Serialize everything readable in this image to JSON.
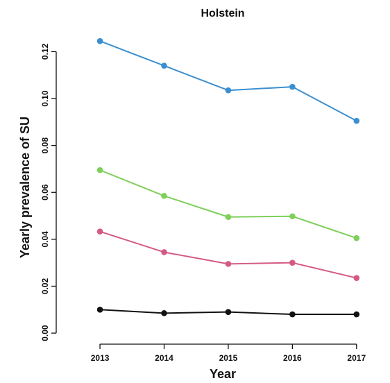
{
  "chart_data": {
    "type": "line",
    "title": "Holstein",
    "xlabel": "Year",
    "ylabel": "Yearly prevalence of SU",
    "x": [
      2013,
      2014,
      2015,
      2016,
      2017
    ],
    "x_tick_labels": [
      "2013",
      "2014",
      "2015",
      "2016",
      "2017"
    ],
    "xlim": [
      2012.35,
      2017.5
    ],
    "ylim": [
      -0.005,
      0.129
    ],
    "y_ticks": [
      0.0,
      0.02,
      0.04,
      0.06,
      0.08,
      0.1,
      0.12
    ],
    "y_tick_labels": [
      "0.00",
      "0.02",
      "0.04",
      "0.06",
      "0.08",
      "0.10",
      "0.12"
    ],
    "grid": false,
    "legend": "none",
    "series": [
      {
        "color": "#3b8fd0",
        "values": [
          0.1245,
          0.114,
          0.1035,
          0.105,
          0.0905
        ]
      },
      {
        "color": "#7fcf5a",
        "values": [
          0.0695,
          0.0585,
          0.0495,
          0.0498,
          0.0405
        ]
      },
      {
        "color": "#d45a86",
        "values": [
          0.0433,
          0.0345,
          0.0295,
          0.03,
          0.0235
        ]
      },
      {
        "color": "#111111",
        "values": [
          0.01,
          0.0085,
          0.009,
          0.008,
          0.008
        ]
      }
    ]
  }
}
